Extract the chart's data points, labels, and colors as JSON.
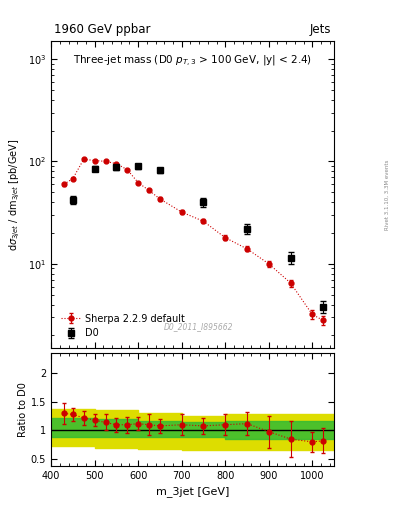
{
  "title_top_left": "1960 GeV ppbar",
  "title_top_right": "Jets",
  "plot_title": "Three-jet mass (D0 $p_{T,3}$ > 100 GeV, |y| < 2.4)",
  "xlabel": "m_3jet [GeV]",
  "ylabel": "dσ_3jet / dm_3jet [pb/GeV]",
  "ylabel_ratio": "Ratio to D0",
  "watermark": "D0_2011_I895662",
  "rivet_label": "Rivet 3.1.10, 3.3M events",
  "d0_x": [
    450,
    500,
    550,
    600,
    650,
    750,
    850,
    950,
    1025
  ],
  "d0_y": [
    42,
    85,
    88,
    90,
    82,
    40,
    22,
    11.5,
    3.8
  ],
  "d0_yerr": [
    4,
    5,
    5,
    5,
    5,
    4,
    2.5,
    1.5,
    0.5
  ],
  "sherpa_x": [
    430,
    450,
    475,
    500,
    525,
    550,
    575,
    600,
    625,
    650,
    700,
    750,
    800,
    850,
    900,
    950,
    1000,
    1025
  ],
  "sherpa_y": [
    60,
    68,
    105,
    102,
    100,
    95,
    83,
    62,
    52,
    43,
    32,
    26,
    18,
    14,
    10,
    6.5,
    3.2,
    2.8
  ],
  "sherpa_yerr": [
    2,
    2,
    2,
    2,
    2,
    2,
    2,
    1.5,
    1.5,
    1.5,
    1.5,
    1.2,
    1.0,
    0.8,
    0.6,
    0.5,
    0.3,
    0.3
  ],
  "ratio_x": [
    430,
    450,
    475,
    500,
    525,
    550,
    575,
    600,
    625,
    650,
    700,
    750,
    800,
    850,
    900,
    950,
    1000,
    1025
  ],
  "ratio_y": [
    1.3,
    1.28,
    1.22,
    1.18,
    1.14,
    1.1,
    1.1,
    1.12,
    1.1,
    1.08,
    1.1,
    1.08,
    1.1,
    1.12,
    0.98,
    0.85,
    0.8,
    0.82
  ],
  "ratio_yerr": [
    0.18,
    0.12,
    0.12,
    0.1,
    0.14,
    0.12,
    0.14,
    0.12,
    0.18,
    0.12,
    0.18,
    0.14,
    0.18,
    0.2,
    0.28,
    0.32,
    0.18,
    0.22
  ],
  "band_x_edges": [
    400,
    500,
    600,
    700,
    800,
    900,
    1050
  ],
  "green_upper": [
    1.22,
    1.2,
    1.16,
    1.14,
    1.16,
    1.16,
    1.16
  ],
  "green_lower": [
    0.88,
    0.88,
    0.88,
    0.88,
    0.85,
    0.85,
    0.85
  ],
  "yellow_upper": [
    1.38,
    1.35,
    1.3,
    1.26,
    1.28,
    1.28,
    1.28
  ],
  "yellow_lower": [
    0.72,
    0.7,
    0.68,
    0.65,
    0.65,
    0.65,
    0.65
  ],
  "xlim": [
    400,
    1050
  ],
  "ylim_main": [
    1.5,
    1500
  ],
  "ylim_ratio": [
    0.38,
    2.35
  ],
  "color_d0": "#000000",
  "color_sherpa": "#cc0000",
  "color_green": "#33bb33",
  "color_yellow": "#dddd00",
  "bg_color": "#ffffff"
}
